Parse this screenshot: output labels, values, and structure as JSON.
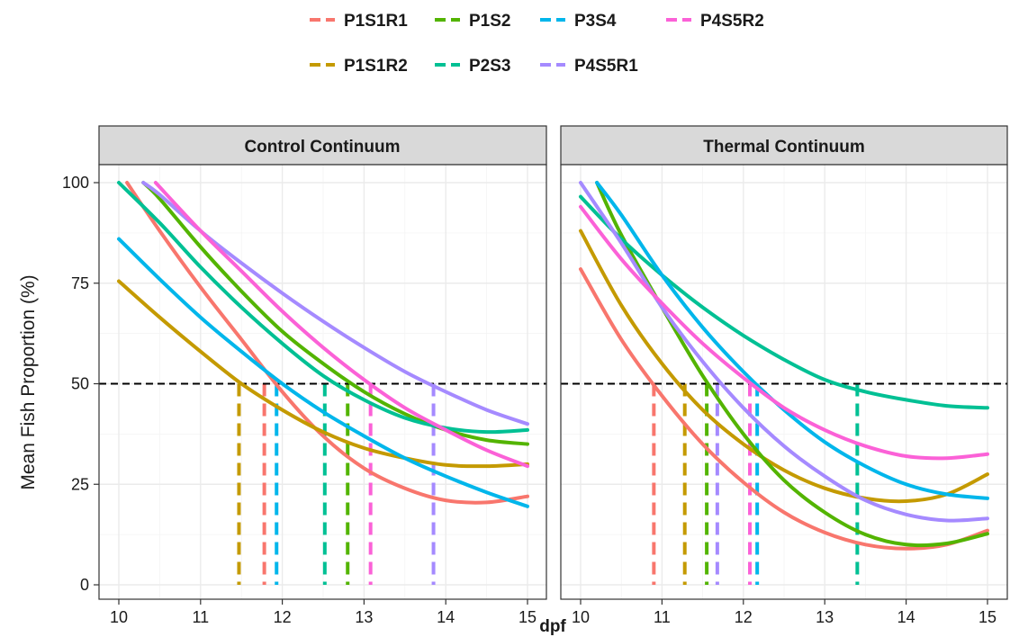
{
  "chart_data": [
    {
      "type": "line",
      "panel": "Control Continuum",
      "xlabel": "dpf",
      "ylabel": "Mean Fish Proportion (%)",
      "xlim": [
        10,
        15
      ],
      "ylim": [
        0,
        100
      ],
      "xticks": [
        "10",
        "11",
        "12",
        "13",
        "14",
        "15"
      ],
      "yticks": [
        "0",
        "25",
        "50",
        "75",
        "100"
      ],
      "threshold": 50,
      "series": [
        {
          "name": "P1S1R1",
          "color": "#F8766D",
          "x": [
            10.1,
            10.5,
            11.0,
            11.5,
            12.0,
            12.5,
            13.0,
            13.5,
            14.0,
            14.5,
            15.0
          ],
          "y": [
            100,
            88,
            74,
            61,
            48,
            37,
            29,
            24,
            21,
            20.5,
            22
          ],
          "threshold_x": 11.78
        },
        {
          "name": "P1S1R2",
          "color": "#C49A00",
          "x": [
            10.0,
            10.5,
            11.0,
            11.5,
            12.0,
            12.5,
            13.0,
            13.5,
            14.0,
            14.5,
            15.0
          ],
          "y": [
            75.5,
            66.5,
            58,
            50,
            43.5,
            38,
            34,
            31.5,
            29.8,
            29.5,
            30
          ],
          "threshold_x": 11.47
        },
        {
          "name": "P1S2",
          "color": "#53B400",
          "x": [
            10.3,
            10.5,
            11.0,
            11.5,
            12.0,
            12.5,
            13.0,
            13.5,
            14.0,
            14.5,
            15.0
          ],
          "y": [
            100,
            96,
            84,
            73,
            63,
            55,
            48,
            42.5,
            38.5,
            36,
            35
          ],
          "threshold_x": 12.8
        },
        {
          "name": "P2S3",
          "color": "#00C094",
          "x": [
            10.0,
            10.5,
            11.0,
            11.5,
            12.0,
            12.5,
            13.0,
            13.5,
            14.0,
            14.5,
            15.0
          ],
          "y": [
            100,
            90,
            79,
            69,
            60,
            52,
            46,
            41.5,
            39,
            38,
            38.5
          ],
          "threshold_x": 12.52
        },
        {
          "name": "P3S4",
          "color": "#00B6EB",
          "x": [
            10.0,
            10.5,
            11.0,
            11.5,
            12.0,
            12.5,
            13.0,
            13.5,
            14.0,
            14.5,
            15.0
          ],
          "y": [
            86,
            76,
            66.5,
            58,
            50,
            43,
            37,
            31.5,
            27,
            23,
            19.5
          ],
          "threshold_x": 11.93
        },
        {
          "name": "P4S5R1",
          "color": "#A58AFF",
          "x": [
            10.3,
            10.5,
            11.0,
            11.5,
            12.0,
            12.5,
            13.0,
            13.5,
            14.0,
            14.5,
            15.0
          ],
          "y": [
            100,
            97,
            88,
            80,
            72.5,
            65.5,
            59,
            53,
            48,
            43.5,
            40
          ],
          "threshold_x": 13.85
        },
        {
          "name": "P4S5R2",
          "color": "#FB61D7",
          "x": [
            10.45,
            11.0,
            11.5,
            12.0,
            12.5,
            13.0,
            13.5,
            14.0,
            14.5,
            15.0
          ],
          "y": [
            100,
            88,
            78,
            68,
            59,
            51,
            44,
            38.5,
            33.5,
            29.5
          ],
          "threshold_x": 13.08
        }
      ]
    },
    {
      "type": "line",
      "panel": "Thermal Continuum",
      "xlabel": "dpf",
      "ylabel": "Mean Fish Proportion (%)",
      "xlim": [
        10,
        15
      ],
      "ylim": [
        0,
        100
      ],
      "xticks": [
        "10",
        "11",
        "12",
        "13",
        "14",
        "15"
      ],
      "yticks": [
        "0",
        "25",
        "50",
        "75",
        "100"
      ],
      "threshold": 50,
      "series": [
        {
          "name": "P1S1R1",
          "color": "#F8766D",
          "x": [
            10.0,
            10.5,
            11.0,
            11.5,
            12.0,
            12.5,
            13.0,
            13.5,
            14.0,
            14.5,
            15.0
          ],
          "y": [
            78.5,
            61,
            47,
            35,
            25.5,
            18,
            13,
            10,
            9,
            10,
            13.5
          ],
          "threshold_x": 10.9
        },
        {
          "name": "P1S1R2",
          "color": "#C49A00",
          "x": [
            10.0,
            10.5,
            11.0,
            11.5,
            12.0,
            12.5,
            13.0,
            13.5,
            14.0,
            14.5,
            15.0
          ],
          "y": [
            88,
            69.5,
            55,
            43.5,
            35,
            28.5,
            24,
            21.5,
            20.8,
            22.5,
            27.5
          ],
          "threshold_x": 11.28
        },
        {
          "name": "P1S2",
          "color": "#53B400",
          "x": [
            10.2,
            10.5,
            11.0,
            11.5,
            12.0,
            12.5,
            13.0,
            13.5,
            14.0,
            14.5,
            15.0
          ],
          "y": [
            100,
            87,
            69,
            52,
            37.5,
            26,
            18,
            12.5,
            10,
            10.3,
            12.7
          ],
          "threshold_x": 11.55
        },
        {
          "name": "P2S3",
          "color": "#00C094",
          "x": [
            10.0,
            10.5,
            11.0,
            11.5,
            12.0,
            12.5,
            13.0,
            13.5,
            14.0,
            14.5,
            15.0
          ],
          "y": [
            96.5,
            86,
            77,
            69,
            62,
            56,
            51,
            48,
            46,
            44.5,
            44
          ],
          "threshold_x": 13.4
        },
        {
          "name": "P3S4",
          "color": "#00B6EB",
          "x": [
            10.2,
            10.5,
            11.0,
            11.5,
            12.0,
            12.5,
            13.0,
            13.5,
            14.0,
            14.5,
            15.0
          ],
          "y": [
            100,
            92,
            77,
            64,
            53,
            43.5,
            35.5,
            29.5,
            25,
            22.5,
            21.5
          ],
          "threshold_x": 12.17
        },
        {
          "name": "P4S5R1",
          "color": "#A58AFF",
          "x": [
            10.0,
            10.5,
            11.0,
            11.5,
            12.0,
            12.5,
            13.0,
            13.5,
            14.0,
            14.5,
            15.0
          ],
          "y": [
            100,
            85,
            69,
            55.5,
            44,
            34.5,
            27,
            21,
            17.5,
            16,
            16.5
          ],
          "threshold_x": 11.68
        },
        {
          "name": "P4S5R2",
          "color": "#FB61D7",
          "x": [
            10.0,
            10.5,
            11.0,
            11.5,
            12.0,
            12.5,
            13.0,
            13.5,
            14.0,
            14.5,
            15.0
          ],
          "y": [
            94,
            81,
            70,
            60,
            51.5,
            44,
            38.5,
            34.5,
            32,
            31.5,
            32.5
          ],
          "threshold_x": 12.08
        }
      ]
    }
  ],
  "legend": {
    "placement": "top",
    "entries": [
      {
        "name": "P1S1R1",
        "color": "#F8766D"
      },
      {
        "name": "P1S2",
        "color": "#53B400"
      },
      {
        "name": "P3S4",
        "color": "#00B6EB"
      },
      {
        "name": "P4S5R2",
        "color": "#FB61D7"
      },
      {
        "name": "P1S1R2",
        "color": "#C49A00"
      },
      {
        "name": "P2S3",
        "color": "#00C094"
      },
      {
        "name": "P4S5R1",
        "color": "#A58AFF"
      }
    ]
  }
}
